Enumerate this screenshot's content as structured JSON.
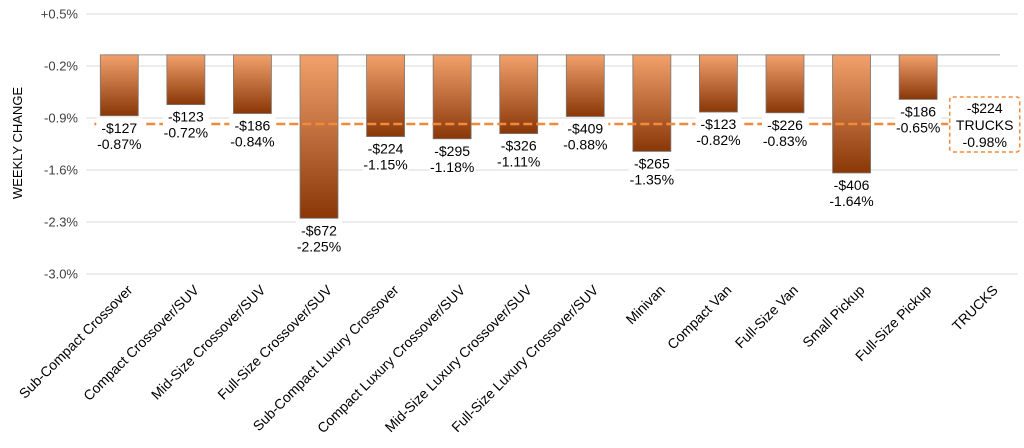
{
  "chart_data": {
    "type": "bar",
    "ylabel": "WEEKLY CHANGE",
    "ylim": [
      -3.0,
      0.5
    ],
    "yticks": [
      "+0.5%",
      "-0.2%",
      "-0.9%",
      "-1.6%",
      "-2.3%",
      "-3.0%"
    ],
    "grid": true,
    "bar_color_light": "#F2A16C",
    "bar_color_dark": "#8A3708",
    "reference_color": "#F08A3C",
    "categories": [
      "Sub-Compact Crossover",
      "Compact Crossover/SUV",
      "Mid-Size Crossover/SUV",
      "Full-Size Crossover/SUV",
      "Sub-Compact Luxury Crossover",
      "Compact Luxury Crossover/SUV",
      "Mid-Size Luxury Crossover/SUV",
      "Full-Size Luxury Crossover/SUV",
      "Minivan",
      "Compact Van",
      "Full-Size Van",
      "Small Pickup",
      "Full-Size Pickup",
      "TRUCKS"
    ],
    "values": [
      -0.87,
      -0.72,
      -0.84,
      -2.25,
      -1.15,
      -1.18,
      -1.11,
      -0.88,
      -1.35,
      -0.82,
      -0.83,
      -1.64,
      -0.65,
      null
    ],
    "dollar_labels": [
      "-$127",
      "-$123",
      "-$186",
      "-$672",
      "-$224",
      "-$295",
      "-$326",
      "-$409",
      "-$265",
      "-$123",
      "-$226",
      "-$406",
      "-$186"
    ],
    "percent_labels": [
      "-0.87%",
      "-0.72%",
      "-0.84%",
      "-2.25%",
      "-1.15%",
      "-1.18%",
      "-1.11%",
      "-0.88%",
      "-1.35%",
      "-0.82%",
      "-0.83%",
      "-1.64%",
      "-0.65%"
    ],
    "reference": {
      "value": -0.98,
      "dollar_label": "-$224",
      "name_label": "TRUCKS",
      "percent_label": "-0.98%"
    }
  }
}
